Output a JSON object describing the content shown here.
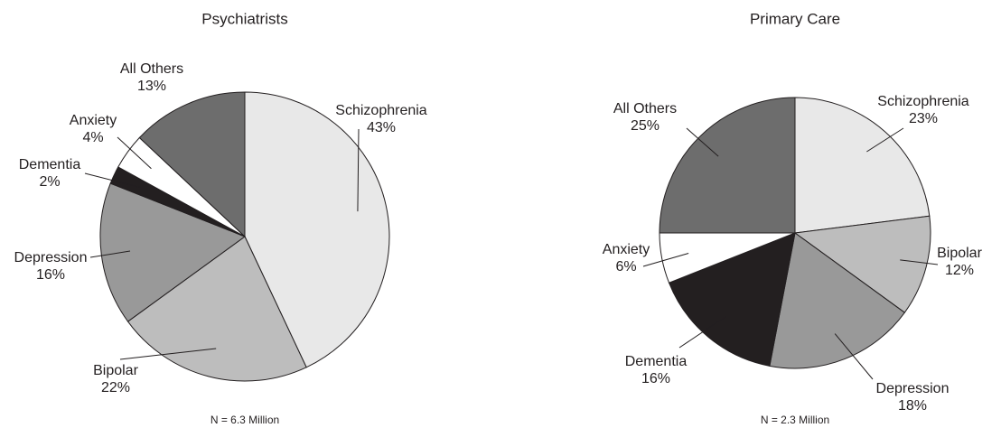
{
  "chart_data": [
    {
      "type": "pie",
      "title": "Psychiatrists",
      "categories": [
        "Schizophrenia",
        "Bipolar",
        "Depression",
        "Dementia",
        "Anxiety",
        "All Others"
      ],
      "values": [
        43,
        22,
        16,
        2,
        4,
        13
      ],
      "value_labels": [
        "43%",
        "22%",
        "16%",
        "2%",
        "4%",
        "13%"
      ],
      "colors": [
        "#e8e8e8",
        "#bdbdbd",
        "#999999",
        "#231f20",
        "#ffffff",
        "#6d6d6d"
      ],
      "note": "N = 6.3 Million"
    },
    {
      "type": "pie",
      "title": "Primary Care",
      "categories": [
        "Schizophrenia",
        "Bipolar",
        "Depression",
        "Dementia",
        "Anxiety",
        "All Others"
      ],
      "values": [
        23,
        12,
        18,
        16,
        6,
        25
      ],
      "value_labels": [
        "23%",
        "12%",
        "18%",
        "16%",
        "6%",
        "25%"
      ],
      "colors": [
        "#e8e8e8",
        "#bdbdbd",
        "#999999",
        "#231f20",
        "#ffffff",
        "#6d6d6d"
      ],
      "note": "N = 2.3 Million"
    }
  ]
}
